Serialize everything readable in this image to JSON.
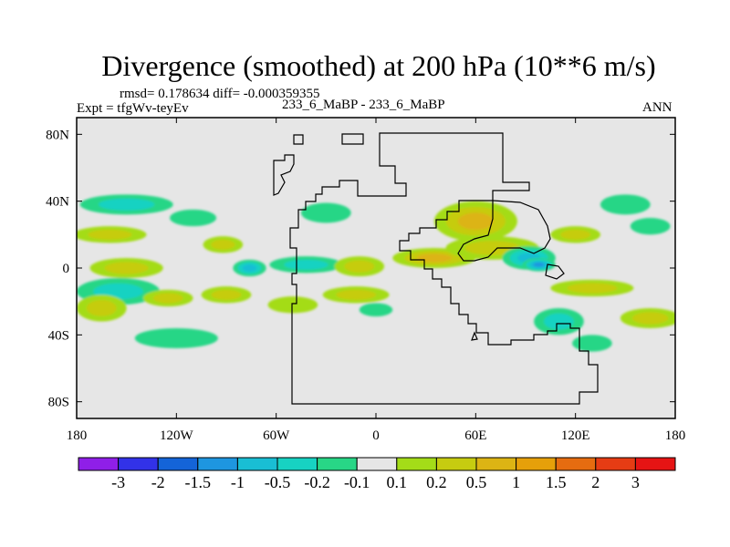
{
  "chart_data": {
    "type": "heatmap",
    "title": "Divergence (smoothed) at 200 hPa (10**6 m/s)",
    "stats": "rmsd= 0.178634 diff= -0.000359355",
    "experiment": "Expt = tfgWv-teyEv",
    "cases": "233_6_MaBP - 233_6_MaBP",
    "season": "ANN",
    "xlim": [
      -180,
      180
    ],
    "ylim": [
      -90,
      90
    ],
    "x_ticks": [
      {
        "value": -180,
        "label": "180"
      },
      {
        "value": -120,
        "label": "120W"
      },
      {
        "value": -60,
        "label": "60W"
      },
      {
        "value": 0,
        "label": "0"
      },
      {
        "value": 60,
        "label": "60E"
      },
      {
        "value": 120,
        "label": "120E"
      },
      {
        "value": 180,
        "label": "180"
      }
    ],
    "y_ticks": [
      {
        "value": 80,
        "label": "80N"
      },
      {
        "value": 40,
        "label": "40N"
      },
      {
        "value": 0,
        "label": "0"
      },
      {
        "value": -40,
        "label": "40S"
      },
      {
        "value": -80,
        "label": "80S"
      }
    ],
    "colorbar": {
      "colors": [
        "#8f1fe8",
        "#3232e8",
        "#1464d8",
        "#1e96e0",
        "#19bed4",
        "#17d2c2",
        "#28d686",
        "#e6e6e6",
        "#a4dc18",
        "#c6cc10",
        "#dcb414",
        "#e6a00a",
        "#e66c10",
        "#e63c14",
        "#e61414"
      ],
      "labels": [
        "-3",
        "-2",
        "-1.5",
        "-1",
        "-0.5",
        "-0.2",
        "-0.1",
        "0.1",
        "0.2",
        "0.5",
        "1",
        "1.5",
        "2",
        "3"
      ]
    },
    "anomalies": [
      {
        "lon": -150,
        "lat": 38,
        "rx": 28,
        "ry": 6,
        "level": -0.3
      },
      {
        "lon": -160,
        "lat": 20,
        "rx": 22,
        "ry": 5,
        "level": 0.3
      },
      {
        "lon": -110,
        "lat": 30,
        "rx": 14,
        "ry": 5,
        "level": -0.15
      },
      {
        "lon": -150,
        "lat": 0,
        "rx": 22,
        "ry": 6,
        "level": 0.35
      },
      {
        "lon": -155,
        "lat": -14,
        "rx": 25,
        "ry": 8,
        "level": -0.5
      },
      {
        "lon": -165,
        "lat": -24,
        "rx": 15,
        "ry": 8,
        "level": 0.5
      },
      {
        "lon": -120,
        "lat": -42,
        "rx": 25,
        "ry": 6,
        "level": -0.15
      },
      {
        "lon": -125,
        "lat": -18,
        "rx": 15,
        "ry": 5,
        "level": 0.3
      },
      {
        "lon": -90,
        "lat": -16,
        "rx": 15,
        "ry": 5,
        "level": 0.3
      },
      {
        "lon": -76,
        "lat": 0,
        "rx": 10,
        "ry": 5,
        "level": -0.6
      },
      {
        "lon": -92,
        "lat": 14,
        "rx": 12,
        "ry": 5,
        "level": 0.3
      },
      {
        "lon": -30,
        "lat": 33,
        "rx": 15,
        "ry": 6,
        "level": -0.15
      },
      {
        "lon": -42,
        "lat": 2,
        "rx": 22,
        "ry": 5,
        "level": -0.3
      },
      {
        "lon": -10,
        "lat": 1,
        "rx": 15,
        "ry": 6,
        "level": 0.35
      },
      {
        "lon": -12,
        "lat": -16,
        "rx": 20,
        "ry": 5,
        "level": 0.3
      },
      {
        "lon": -50,
        "lat": -22,
        "rx": 15,
        "ry": 5,
        "level": 0.2
      },
      {
        "lon": 60,
        "lat": 28,
        "rx": 25,
        "ry": 12,
        "level": 0.6
      },
      {
        "lon": 35,
        "lat": 6,
        "rx": 25,
        "ry": 6,
        "level": 1.0
      },
      {
        "lon": 70,
        "lat": 12,
        "rx": 28,
        "ry": 7,
        "level": 0.5
      },
      {
        "lon": 92,
        "lat": 6,
        "rx": 16,
        "ry": 7,
        "level": -0.6
      },
      {
        "lon": 98,
        "lat": 2,
        "rx": 10,
        "ry": 4,
        "level": -1.2
      },
      {
        "lon": 120,
        "lat": 20,
        "rx": 15,
        "ry": 5,
        "level": 0.3
      },
      {
        "lon": 150,
        "lat": 38,
        "rx": 15,
        "ry": 6,
        "level": -0.15
      },
      {
        "lon": 165,
        "lat": 25,
        "rx": 12,
        "ry": 5,
        "level": -0.15
      },
      {
        "lon": 130,
        "lat": -12,
        "rx": 25,
        "ry": 5,
        "level": 0.3
      },
      {
        "lon": 110,
        "lat": -32,
        "rx": 15,
        "ry": 8,
        "level": -0.4
      },
      {
        "lon": 165,
        "lat": -30,
        "rx": 18,
        "ry": 6,
        "level": 0.4
      },
      {
        "lon": 130,
        "lat": -45,
        "rx": 12,
        "ry": 5,
        "level": -0.15
      },
      {
        "lon": 0,
        "lat": -25,
        "rx": 10,
        "ry": 4,
        "level": -0.15
      }
    ]
  }
}
